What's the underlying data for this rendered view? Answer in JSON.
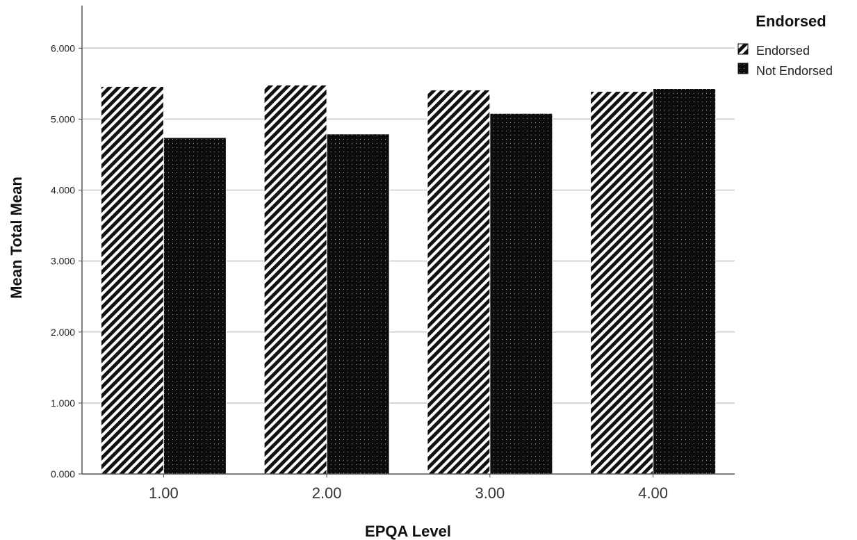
{
  "chart_data": {
    "type": "bar",
    "categories": [
      "1.00",
      "2.00",
      "3.00",
      "4.00"
    ],
    "series": [
      {
        "name": "Endorsed",
        "values": [
          5.46,
          5.48,
          5.41,
          5.39
        ]
      },
      {
        "name": "Not Endorsed",
        "values": [
          4.74,
          4.79,
          5.08,
          5.43
        ]
      }
    ],
    "xlabel": "EPQA Level",
    "ylabel": "Mean Total Mean",
    "ylim": [
      0,
      6.6
    ],
    "yticks": [
      "0.000",
      "1.000",
      "2.000",
      "3.000",
      "4.000",
      "5.000",
      "6.000"
    ],
    "ytick_values": [
      0,
      1,
      2,
      3,
      4,
      5,
      6
    ],
    "grid": true,
    "legend": {
      "title": "Endorsed",
      "placement": "top-right"
    }
  }
}
